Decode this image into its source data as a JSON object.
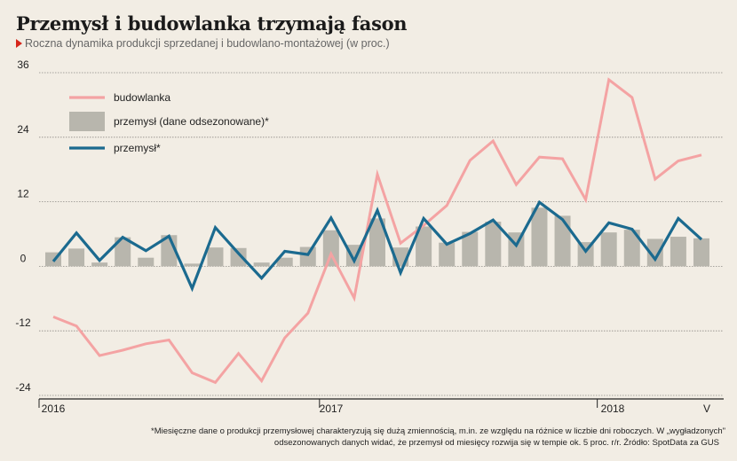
{
  "title": "Przemysł i budowlanka trzymają fason",
  "subtitle": "Roczna dynamika produkcji sprzedanej i budowlano-montażowej (w proc.)",
  "footnote": {
    "line1": "*Miesięczne dane o produkcji przemysłowej charakteryzują się dużą zmiennością, m.in. ze względu na różnice w liczbie dni roboczych. W „wygładzonych\"",
    "line2": "odsezonowanych danych widać, że przemysł od miesięcy rozwija się w tempie ok. 5 proc. r/r. Źródło: SpotData za GUS"
  },
  "colors": {
    "background": "#f2ede4",
    "budowlanka": "#f4a3a3",
    "bars": "#b8b6ad",
    "przemysl": "#1b6a8f",
    "grid": "#8e8c86"
  },
  "chart_data": {
    "type": "bar",
    "x": [
      "2016-01",
      "2016-02",
      "2016-03",
      "2016-04",
      "2016-05",
      "2016-06",
      "2016-07",
      "2016-08",
      "2016-09",
      "2016-10",
      "2016-11",
      "2016-12",
      "2017-01",
      "2017-02",
      "2017-03",
      "2017-04",
      "2017-05",
      "2017-06",
      "2017-07",
      "2017-08",
      "2017-09",
      "2017-10",
      "2017-11",
      "2017-12",
      "2018-01",
      "2018-02",
      "2018-03",
      "2018-04",
      "2018-05"
    ],
    "x_tick_labels": [
      "2016",
      "2017",
      "2018",
      "V"
    ],
    "y_ticks": [
      -24,
      -12,
      0,
      12,
      24,
      36
    ],
    "ylim": [
      -24,
      36
    ],
    "legend_position": "top-left",
    "grid": true,
    "series": [
      {
        "name": "budowlanka",
        "type": "line",
        "values": [
          -9.4,
          -11.1,
          -16.6,
          -15.6,
          -14.4,
          -13.7,
          -19.8,
          -21.6,
          -16.2,
          -21.3,
          -13.3,
          -8.7,
          2.3,
          -5.9,
          17.1,
          4.3,
          7.6,
          11.3,
          19.7,
          23.3,
          15.2,
          20.3,
          20.0,
          12.4,
          34.7,
          31.4,
          16.2,
          19.6,
          20.7
        ]
      },
      {
        "name": "przemysł (dane odsezonowane)*",
        "type": "bar",
        "values": [
          2.6,
          3.3,
          0.7,
          5.4,
          1.6,
          5.8,
          0.5,
          3.5,
          3.4,
          0.7,
          1.6,
          3.6,
          6.7,
          4.0,
          8.9,
          3.5,
          7.4,
          4.4,
          6.4,
          8.3,
          6.3,
          10.9,
          9.4,
          4.5,
          6.3,
          6.8,
          5.1,
          5.5,
          5.2
        ]
      },
      {
        "name": "przemysł*",
        "type": "line",
        "values": [
          0.9,
          6.2,
          1.1,
          5.4,
          2.9,
          5.6,
          -4.1,
          7.2,
          2.4,
          -2.2,
          2.8,
          2.2,
          9.0,
          1.0,
          10.4,
          -1.2,
          8.9,
          4.1,
          6.1,
          8.6,
          3.9,
          11.9,
          8.7,
          2.8,
          8.1,
          6.9,
          1.3,
          8.9,
          5.0
        ]
      }
    ]
  }
}
